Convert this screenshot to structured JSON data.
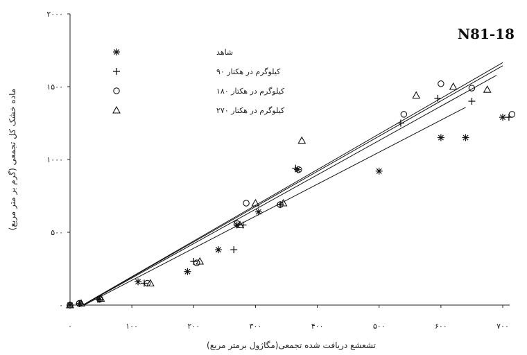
{
  "chart_data": {
    "type": "scatter",
    "title": "N81-18",
    "xlabel": "تشعشع دریافت شده تجمعی(مگاژول برمتر مربع)",
    "ylabel": "ماده خشک کل تجمعی (گرم بر متر مربع)",
    "xlim": [
      0,
      700
    ],
    "ylim": [
      0,
      2000
    ],
    "x_ticks": [
      {
        "value": 0,
        "label": "۰"
      },
      {
        "value": 100,
        "label": "۱۰۰"
      },
      {
        "value": 200,
        "label": "۲۰۰"
      },
      {
        "value": 300,
        "label": "۳۰۰"
      },
      {
        "value": 400,
        "label": "۴۰۰"
      },
      {
        "value": 500,
        "label": "۵۰۰"
      },
      {
        "value": 600,
        "label": "۶۰۰"
      },
      {
        "value": 700,
        "label": "۷۰۰"
      }
    ],
    "y_ticks": [
      {
        "value": 0,
        "label": "۰"
      },
      {
        "value": 500,
        "label": "۵۰۰"
      },
      {
        "value": 1000,
        "label": "۱۰۰۰"
      },
      {
        "value": 1500,
        "label": "۱۵۰۰"
      },
      {
        "value": 2000,
        "label": "۲۰۰۰"
      }
    ],
    "grid": false,
    "legend_position": "top-left",
    "series": [
      {
        "name": "شاهد",
        "marker": "asterisk",
        "color": "#111111",
        "x": [
          0,
          16,
          48,
          110,
          190,
          240,
          270,
          305,
          368,
          500,
          600,
          640,
          700
        ],
        "y": [
          0,
          10,
          40,
          160,
          230,
          380,
          550,
          640,
          930,
          920,
          1150,
          1150,
          1290
        ],
        "fit": {
          "slope": 2.2,
          "intercept": -50,
          "x_end": 640
        }
      },
      {
        "name": "کیلوگرم در هکتار ۹۰",
        "marker": "plus",
        "color": "#111111",
        "x": [
          0,
          15,
          45,
          120,
          200,
          265,
          280,
          340,
          365,
          535,
          595,
          650,
          710
        ],
        "y": [
          0,
          10,
          40,
          150,
          300,
          380,
          550,
          690,
          940,
          1250,
          1420,
          1400,
          1290
        ],
        "fit": {
          "slope": 2.36,
          "intercept": -50,
          "x_end": 690
        }
      },
      {
        "name": "کیلوگرم در هکتار ۱۸۰",
        "marker": "circle",
        "color": "#111111",
        "x": [
          0,
          15,
          48,
          125,
          205,
          270,
          285,
          340,
          370,
          540,
          600,
          650,
          715
        ],
        "y": [
          0,
          12,
          40,
          150,
          290,
          560,
          700,
          690,
          930,
          1310,
          1520,
          1490,
          1310
        ],
        "fit": {
          "slope": 2.42,
          "intercept": -50,
          "x_end": 700
        }
      },
      {
        "name": "کیلوگرم در هکتار ۲۷۰",
        "marker": "triangle",
        "color": "#111111",
        "x": [
          0,
          18,
          50,
          130,
          210,
          275,
          300,
          345,
          375,
          560,
          620,
          675
        ],
        "y": [
          0,
          12,
          45,
          150,
          300,
          550,
          700,
          700,
          1130,
          1440,
          1500,
          1480
        ],
        "fit": {
          "slope": 2.45,
          "intercept": -50,
          "x_end": 700
        }
      }
    ]
  }
}
